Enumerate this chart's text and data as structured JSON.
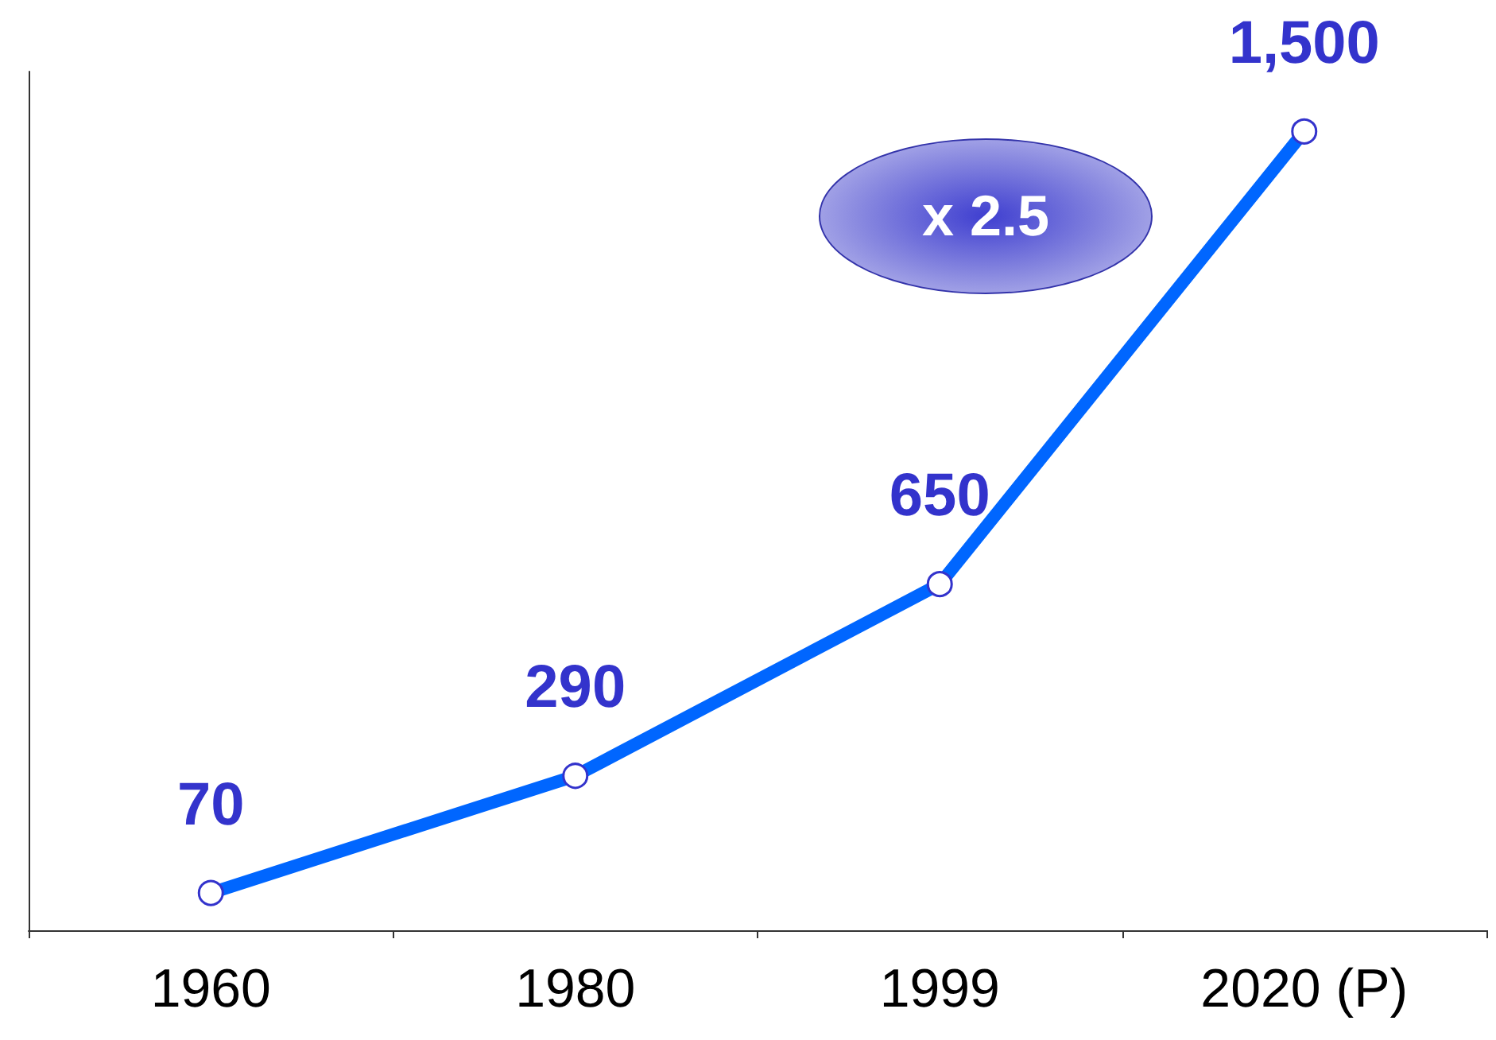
{
  "chart_data": {
    "type": "line",
    "categories": [
      "1960",
      "1980",
      "1999",
      "2020 (P)"
    ],
    "series": [
      {
        "color": "#0066ff",
        "values": [
          70,
          290,
          650,
          1500
        ],
        "value_labels": [
          "70",
          "290",
          "650",
          "1,500"
        ]
      }
    ],
    "marker": "circle",
    "line_style": "solid",
    "grid": false,
    "tick_labels": "x",
    "annotations": [
      "x 2.5"
    ]
  }
}
